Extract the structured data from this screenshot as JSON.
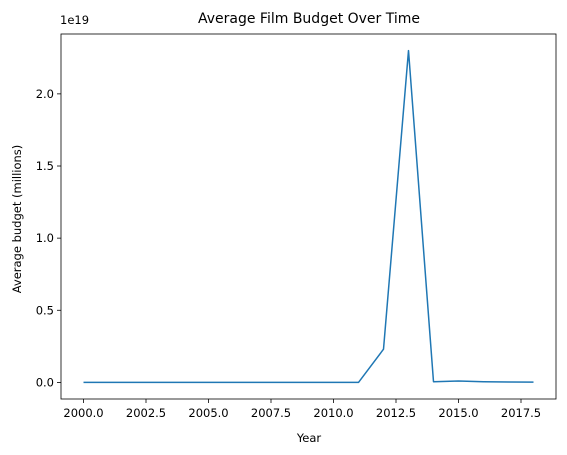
{
  "chart_data": {
    "type": "line",
    "title": "Average Film Budget Over Time",
    "xlabel": "Year",
    "ylabel": "Average budget (millions)",
    "y_offset_label": "1e19",
    "xlim": [
      1999.1,
      2018.9
    ],
    "ylim": [
      -0.115,
      2.415
    ],
    "x_ticks": [
      2000.0,
      2002.5,
      2005.0,
      2007.5,
      2010.0,
      2012.5,
      2015.0,
      2017.5
    ],
    "x_tick_labels": [
      "2000.0",
      "2002.5",
      "2005.0",
      "2007.5",
      "2010.0",
      "2012.5",
      "2015.0",
      "2017.5"
    ],
    "y_ticks": [
      0.0,
      0.5,
      1.0,
      1.5,
      2.0
    ],
    "y_tick_labels": [
      "0.0",
      "0.5",
      "1.0",
      "1.5",
      "2.0"
    ],
    "grid": false,
    "series": [
      {
        "color": "#1f77b4",
        "x": [
          2000,
          2001,
          2002,
          2003,
          2004,
          2005,
          2006,
          2007,
          2008,
          2009,
          2010,
          2011,
          2012,
          2013,
          2014,
          2015,
          2016,
          2017,
          2018
        ],
        "y": [
          0,
          0,
          0,
          0,
          0,
          0,
          0,
          0,
          0,
          0,
          0,
          0,
          0.23,
          2.3,
          0.005,
          0.01,
          0.005,
          0.003,
          0.002
        ]
      }
    ]
  }
}
